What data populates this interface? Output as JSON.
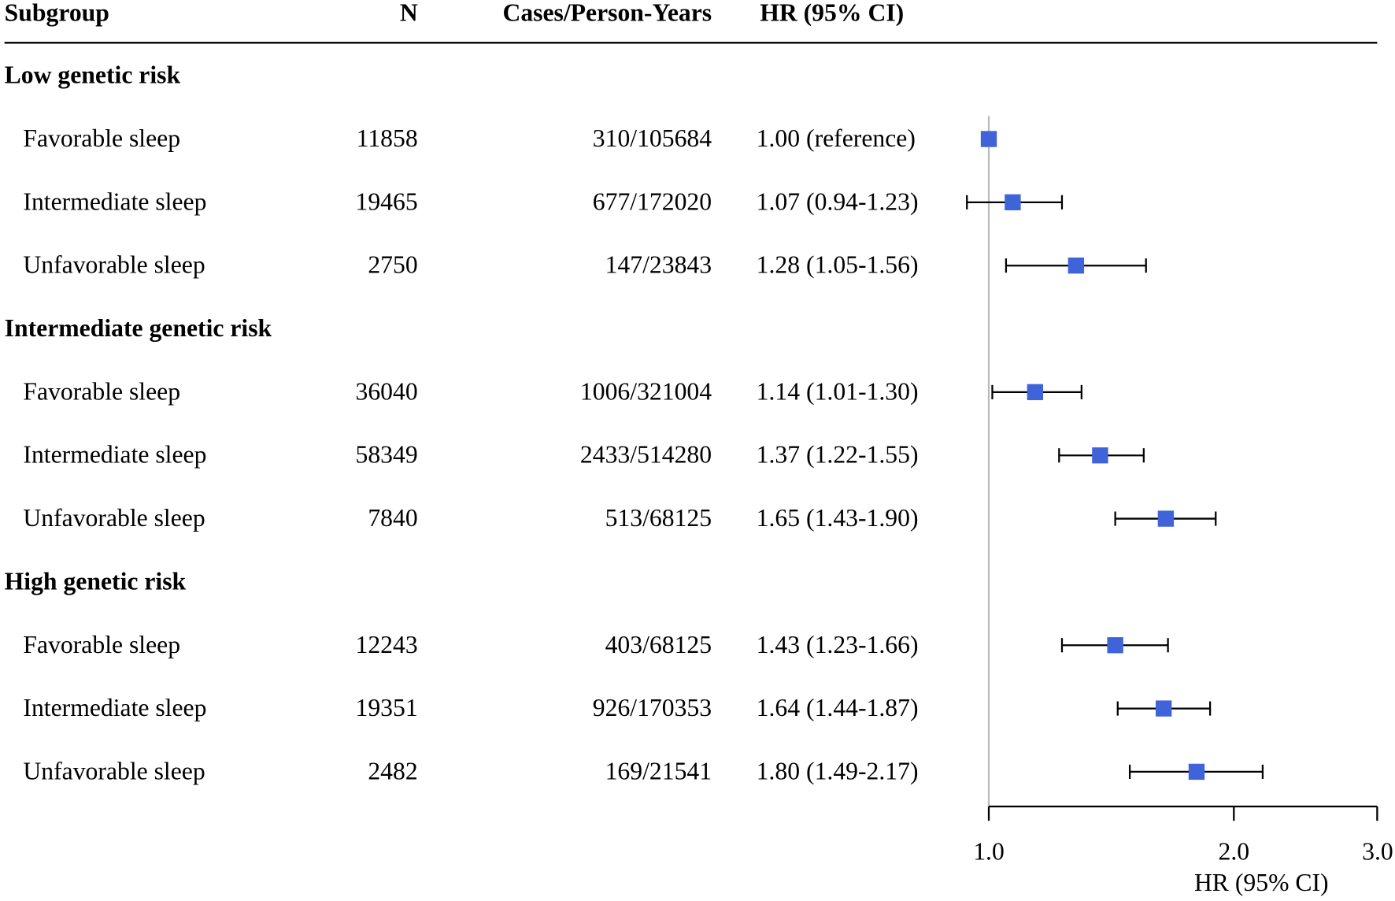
{
  "chart_data": {
    "type": "forest",
    "columns": [
      "Subgroup",
      "N",
      "Cases/Person-Years",
      "HR (95% CI)"
    ],
    "groups": [
      {
        "label": "Low genetic risk",
        "rows": [
          {
            "subgroup": "Favorable sleep",
            "n": 11858,
            "cases": "310/105684",
            "hr_label": "1.00 (reference)",
            "hr": 1.0
          },
          {
            "subgroup": "Intermediate sleep",
            "n": 19465,
            "cases": "677/172020",
            "hr_label": "1.07 (0.94-1.23)",
            "hr": 1.07,
            "lower": 0.94,
            "upper": 1.23
          },
          {
            "subgroup": "Unfavorable sleep",
            "n": 2750,
            "cases": "147/23843",
            "hr_label": "1.28 (1.05-1.56)",
            "hr": 1.28,
            "lower": 1.05,
            "upper": 1.56
          }
        ]
      },
      {
        "label": "Intermediate genetic risk",
        "rows": [
          {
            "subgroup": "Favorable sleep",
            "n": 36040,
            "cases": "1006/321004",
            "hr_label": "1.14 (1.01-1.30)",
            "hr": 1.14,
            "lower": 1.01,
            "upper": 1.3
          },
          {
            "subgroup": "Intermediate sleep",
            "n": 58349,
            "cases": "2433/514280",
            "hr_label": "1.37 (1.22-1.55)",
            "hr": 1.37,
            "lower": 1.22,
            "upper": 1.55
          },
          {
            "subgroup": "Unfavorable sleep",
            "n": 7840,
            "cases": "513/68125",
            "hr_label": "1.65 (1.43-1.90)",
            "hr": 1.65,
            "lower": 1.43,
            "upper": 1.9
          }
        ]
      },
      {
        "label": "High genetic risk",
        "rows": [
          {
            "subgroup": "Favorable sleep",
            "n": 12243,
            "cases": "403/68125",
            "hr_label": "1.43 (1.23-1.66)",
            "hr": 1.43,
            "lower": 1.23,
            "upper": 1.66
          },
          {
            "subgroup": "Intermediate sleep",
            "n": 19351,
            "cases": "926/170353",
            "hr_label": "1.64 (1.44-1.87)",
            "hr": 1.64,
            "lower": 1.44,
            "upper": 1.87
          },
          {
            "subgroup": "Unfavorable sleep",
            "n": 2482,
            "cases": "169/21541",
            "hr_label": "1.80 (1.49-2.17)",
            "hr": 1.8,
            "lower": 1.49,
            "upper": 2.17
          }
        ]
      }
    ],
    "xlabel": "HR (95% CI)",
    "xscale": "log",
    "xlim": [
      1,
      3
    ],
    "xticks": [
      {
        "value": 1,
        "label": "1.0"
      },
      {
        "value": 2,
        "label": "2.0"
      },
      {
        "value": 3,
        "label": "3.0"
      }
    ],
    "color": "#3f63d9"
  }
}
